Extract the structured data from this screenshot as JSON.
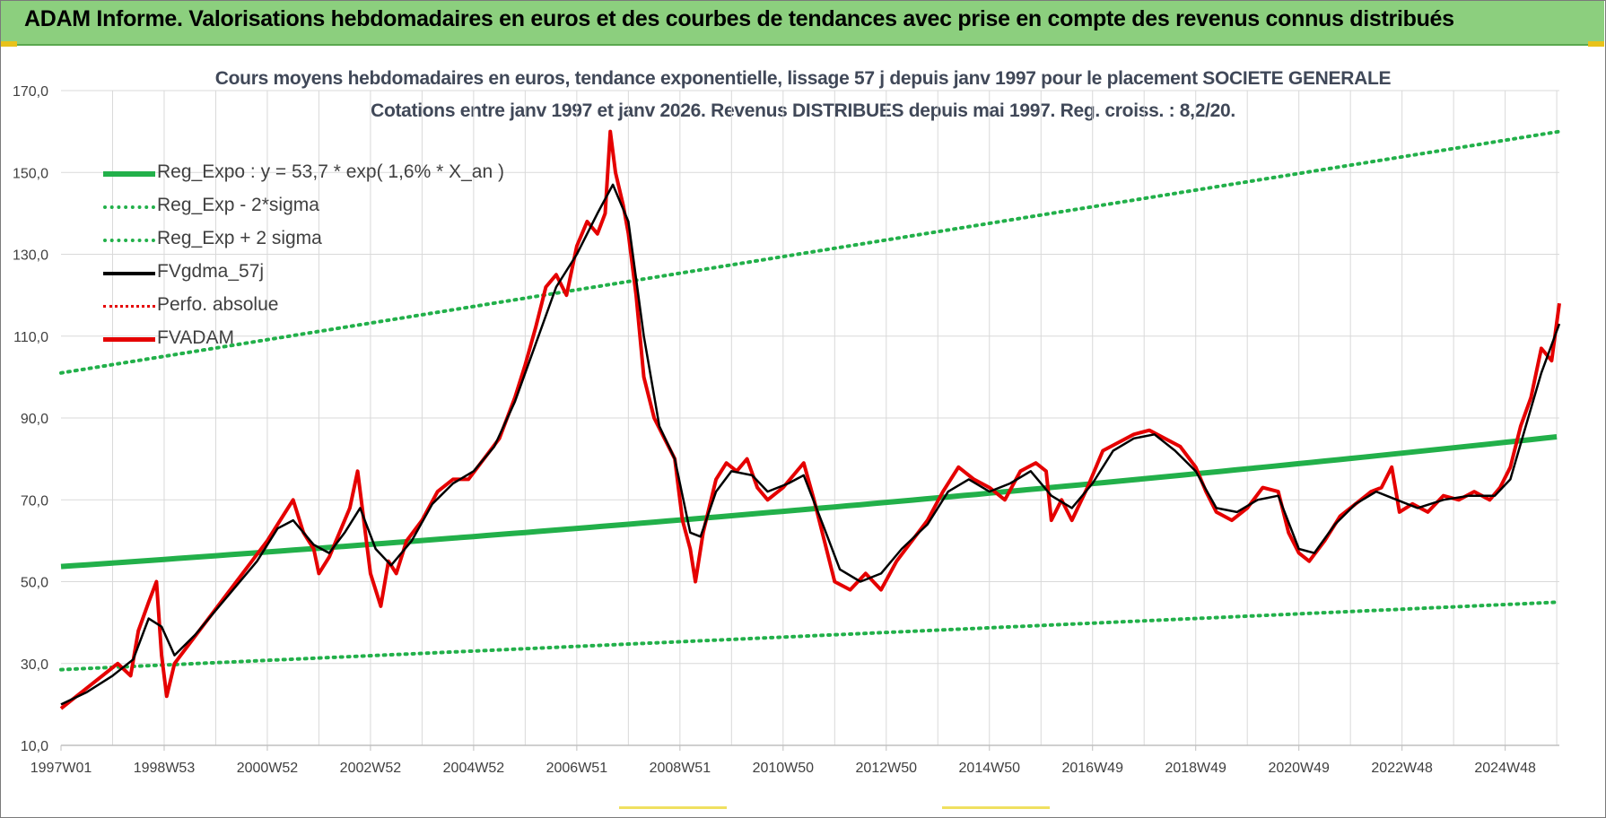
{
  "banner": {
    "title": "ADAM Informe. Valorisations hebdomadaires en euros et des courbes de tendances avec prise en compte des revenus connus distribués"
  },
  "colors": {
    "banner_bg": "#8ccf7e",
    "reg_expo": "#22b04a",
    "fv_gdma": "#000000",
    "fvadam": "#e50000",
    "perfo": "#e50000",
    "grid": "#d9d9d9"
  },
  "chart_data": {
    "type": "line",
    "title": "Cours moyens hebdomadaires en euros, tendance exponentielle, lissage 57 j depuis janv 1997 pour le placement SOCIETE GENERALE",
    "subtitle": "Cotations entre janv 1997 et janv 2026. Revenus DISTRIBUES depuis mai 1997. Reg. croiss. : 8,2/20.",
    "ylim": [
      10,
      170
    ],
    "yticks": [
      "10,0",
      "30,0",
      "50,0",
      "70,0",
      "90,0",
      "110,0",
      "130,0",
      "150,0",
      "170,0"
    ],
    "xlim": [
      1997.0,
      2026.05
    ],
    "xticks": [
      {
        "label": "1997W01",
        "year": 1997.0
      },
      {
        "label": "1998W53",
        "year": 1999.0
      },
      {
        "label": "2000W52",
        "year": 2001.0
      },
      {
        "label": "2002W52",
        "year": 2003.0
      },
      {
        "label": "2004W52",
        "year": 2005.0
      },
      {
        "label": "2006W51",
        "year": 2007.0
      },
      {
        "label": "2008W51",
        "year": 2009.0
      },
      {
        "label": "2010W50",
        "year": 2011.0
      },
      {
        "label": "2012W50",
        "year": 2013.0
      },
      {
        "label": "2014W50",
        "year": 2015.0
      },
      {
        "label": "2016W49",
        "year": 2017.0
      },
      {
        "label": "2018W49",
        "year": 2019.0
      },
      {
        "label": "2020W49",
        "year": 2021.0
      },
      {
        "label": "2022W48",
        "year": 2023.0
      },
      {
        "label": "2024W48",
        "year": 2025.0
      }
    ],
    "legend": [
      {
        "key": "reg_expo",
        "label": "Reg_Expo : y = 53,7 * exp( 1,6% *  X_an )",
        "style": "solid-green"
      },
      {
        "key": "reg_minus",
        "label": "Reg_Exp - 2*sigma",
        "style": "dotted-green"
      },
      {
        "key": "reg_plus",
        "label": "Reg_Exp + 2 sigma",
        "style": "dotted-green"
      },
      {
        "key": "fv_gdma",
        "label": "FVgdma_57j",
        "style": "solid-black"
      },
      {
        "key": "perfo",
        "label": "Perfo. absolue",
        "style": "dotted-red"
      },
      {
        "key": "fvadam",
        "label": "FVADAM",
        "style": "solid-red"
      }
    ],
    "series": [
      {
        "name": "Reg_Expo",
        "type": "exp",
        "a": 53.7,
        "b": 0.016
      },
      {
        "name": "Reg_Exp + 2 sigma",
        "type": "line",
        "points": [
          [
            1997.0,
            101
          ],
          [
            2026.05,
            160
          ]
        ]
      },
      {
        "name": "Reg_Exp - 2*sigma",
        "type": "line",
        "points": [
          [
            1997.0,
            28.5
          ],
          [
            2026.05,
            45
          ]
        ]
      },
      {
        "name": "FVADAM",
        "points": [
          [
            1997.0,
            19
          ],
          [
            1997.3,
            22
          ],
          [
            1997.6,
            25
          ],
          [
            1997.9,
            28
          ],
          [
            1998.1,
            30
          ],
          [
            1998.35,
            27
          ],
          [
            1998.5,
            38
          ],
          [
            1998.7,
            45
          ],
          [
            1998.85,
            50
          ],
          [
            1998.95,
            32
          ],
          [
            1999.05,
            22
          ],
          [
            1999.2,
            30
          ],
          [
            1999.5,
            35
          ],
          [
            1999.8,
            40
          ],
          [
            2000.1,
            45
          ],
          [
            2000.4,
            50
          ],
          [
            2000.7,
            55
          ],
          [
            2001.0,
            60
          ],
          [
            2001.3,
            66
          ],
          [
            2001.5,
            70
          ],
          [
            2001.7,
            62
          ],
          [
            2001.9,
            58
          ],
          [
            2002.0,
            52
          ],
          [
            2002.2,
            56
          ],
          [
            2002.4,
            62
          ],
          [
            2002.6,
            68
          ],
          [
            2002.75,
            77
          ],
          [
            2002.9,
            62
          ],
          [
            2003.0,
            52
          ],
          [
            2003.2,
            44
          ],
          [
            2003.35,
            55
          ],
          [
            2003.5,
            52
          ],
          [
            2003.7,
            60
          ],
          [
            2004.0,
            65
          ],
          [
            2004.3,
            72
          ],
          [
            2004.6,
            75
          ],
          [
            2004.9,
            75
          ],
          [
            2005.2,
            80
          ],
          [
            2005.5,
            85
          ],
          [
            2005.8,
            95
          ],
          [
            2006.0,
            103
          ],
          [
            2006.2,
            112
          ],
          [
            2006.4,
            122
          ],
          [
            2006.6,
            125
          ],
          [
            2006.8,
            120
          ],
          [
            2007.0,
            132
          ],
          [
            2007.2,
            138
          ],
          [
            2007.4,
            135
          ],
          [
            2007.55,
            140
          ],
          [
            2007.65,
            160
          ],
          [
            2007.75,
            150
          ],
          [
            2007.9,
            142
          ],
          [
            2008.0,
            135
          ],
          [
            2008.15,
            120
          ],
          [
            2008.3,
            100
          ],
          [
            2008.5,
            90
          ],
          [
            2008.7,
            85
          ],
          [
            2008.9,
            80
          ],
          [
            2009.05,
            65
          ],
          [
            2009.2,
            58
          ],
          [
            2009.3,
            50
          ],
          [
            2009.45,
            62
          ],
          [
            2009.7,
            75
          ],
          [
            2009.9,
            79
          ],
          [
            2010.1,
            77
          ],
          [
            2010.3,
            80
          ],
          [
            2010.5,
            73
          ],
          [
            2010.7,
            70
          ],
          [
            2011.0,
            73
          ],
          [
            2011.2,
            76
          ],
          [
            2011.4,
            79
          ],
          [
            2011.6,
            70
          ],
          [
            2011.8,
            60
          ],
          [
            2012.0,
            50
          ],
          [
            2012.3,
            48
          ],
          [
            2012.6,
            52
          ],
          [
            2012.9,
            48
          ],
          [
            2013.2,
            55
          ],
          [
            2013.5,
            60
          ],
          [
            2013.8,
            65
          ],
          [
            2014.1,
            72
          ],
          [
            2014.4,
            78
          ],
          [
            2014.7,
            75
          ],
          [
            2015.0,
            73
          ],
          [
            2015.3,
            70
          ],
          [
            2015.6,
            77
          ],
          [
            2015.9,
            79
          ],
          [
            2016.1,
            77
          ],
          [
            2016.2,
            65
          ],
          [
            2016.4,
            70
          ],
          [
            2016.6,
            65
          ],
          [
            2016.9,
            73
          ],
          [
            2017.2,
            82
          ],
          [
            2017.5,
            84
          ],
          [
            2017.8,
            86
          ],
          [
            2018.1,
            87
          ],
          [
            2018.4,
            85
          ],
          [
            2018.7,
            83
          ],
          [
            2019.0,
            78
          ],
          [
            2019.2,
            72
          ],
          [
            2019.4,
            67
          ],
          [
            2019.7,
            65
          ],
          [
            2020.0,
            68
          ],
          [
            2020.3,
            73
          ],
          [
            2020.6,
            72
          ],
          [
            2020.8,
            62
          ],
          [
            2021.0,
            57
          ],
          [
            2021.2,
            55
          ],
          [
            2021.5,
            60
          ],
          [
            2021.8,
            66
          ],
          [
            2022.1,
            69
          ],
          [
            2022.4,
            72
          ],
          [
            2022.6,
            73
          ],
          [
            2022.8,
            78
          ],
          [
            2022.95,
            67
          ],
          [
            2023.2,
            69
          ],
          [
            2023.5,
            67
          ],
          [
            2023.8,
            71
          ],
          [
            2024.1,
            70
          ],
          [
            2024.4,
            72
          ],
          [
            2024.7,
            70
          ],
          [
            2024.9,
            73
          ],
          [
            2025.1,
            78
          ],
          [
            2025.3,
            88
          ],
          [
            2025.5,
            95
          ],
          [
            2025.7,
            107
          ],
          [
            2025.9,
            104
          ],
          [
            2026.05,
            118
          ]
        ]
      },
      {
        "name": "FVgdma_57j",
        "points": [
          [
            1997.0,
            20
          ],
          [
            1997.5,
            23
          ],
          [
            1998.0,
            27
          ],
          [
            1998.4,
            31
          ],
          [
            1998.7,
            41
          ],
          [
            1998.95,
            39
          ],
          [
            1999.2,
            32
          ],
          [
            1999.6,
            37
          ],
          [
            2000.0,
            43
          ],
          [
            2000.4,
            49
          ],
          [
            2000.8,
            55
          ],
          [
            2001.2,
            63
          ],
          [
            2001.5,
            65
          ],
          [
            2001.9,
            59
          ],
          [
            2002.2,
            57
          ],
          [
            2002.5,
            62
          ],
          [
            2002.8,
            68
          ],
          [
            2003.1,
            58
          ],
          [
            2003.4,
            54
          ],
          [
            2003.8,
            60
          ],
          [
            2004.2,
            69
          ],
          [
            2004.6,
            74
          ],
          [
            2005.0,
            77
          ],
          [
            2005.4,
            83
          ],
          [
            2005.8,
            94
          ],
          [
            2006.2,
            108
          ],
          [
            2006.6,
            122
          ],
          [
            2007.0,
            130
          ],
          [
            2007.4,
            140
          ],
          [
            2007.7,
            147
          ],
          [
            2008.0,
            138
          ],
          [
            2008.3,
            110
          ],
          [
            2008.6,
            88
          ],
          [
            2008.9,
            80
          ],
          [
            2009.2,
            62
          ],
          [
            2009.4,
            61
          ],
          [
            2009.7,
            72
          ],
          [
            2010.0,
            77
          ],
          [
            2010.4,
            76
          ],
          [
            2010.7,
            72
          ],
          [
            2011.1,
            74
          ],
          [
            2011.4,
            76
          ],
          [
            2011.8,
            63
          ],
          [
            2012.1,
            53
          ],
          [
            2012.5,
            50
          ],
          [
            2012.9,
            52
          ],
          [
            2013.3,
            58
          ],
          [
            2013.8,
            64
          ],
          [
            2014.2,
            72
          ],
          [
            2014.6,
            75
          ],
          [
            2015.0,
            72
          ],
          [
            2015.4,
            74
          ],
          [
            2015.8,
            77
          ],
          [
            2016.2,
            71
          ],
          [
            2016.6,
            68
          ],
          [
            2017.0,
            74
          ],
          [
            2017.4,
            82
          ],
          [
            2017.8,
            85
          ],
          [
            2018.2,
            86
          ],
          [
            2018.6,
            82
          ],
          [
            2019.0,
            77
          ],
          [
            2019.4,
            68
          ],
          [
            2019.8,
            67
          ],
          [
            2020.2,
            70
          ],
          [
            2020.6,
            71
          ],
          [
            2021.0,
            58
          ],
          [
            2021.3,
            57
          ],
          [
            2021.7,
            64
          ],
          [
            2022.1,
            69
          ],
          [
            2022.5,
            72
          ],
          [
            2022.9,
            70
          ],
          [
            2023.3,
            68
          ],
          [
            2023.8,
            70
          ],
          [
            2024.3,
            71
          ],
          [
            2024.8,
            71
          ],
          [
            2025.1,
            75
          ],
          [
            2025.4,
            88
          ],
          [
            2025.7,
            101
          ],
          [
            2026.05,
            113
          ]
        ]
      }
    ]
  }
}
